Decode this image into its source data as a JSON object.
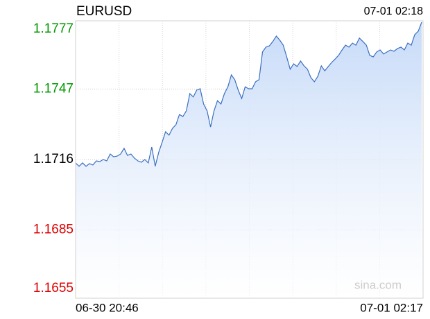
{
  "chart_data": {
    "type": "line",
    "title": "EURUSD",
    "time": "07-01 02:18",
    "x_labels": [
      "06-30 20:46",
      "07-01 02:17"
    ],
    "watermark": "sina.com",
    "ylim": [
      1.1655,
      1.1777
    ],
    "yticks": [
      1.1655,
      1.1685,
      1.1716,
      1.1747,
      1.1777
    ],
    "tick_colors": [
      "#dd0000",
      "#dd0000",
      "#000000",
      "#009900",
      "#009900"
    ],
    "grid": true,
    "series": [
      {
        "name": "EURUSD",
        "color": "#3a6fc0",
        "values": [
          1.17145,
          1.1713,
          1.17145,
          1.1713,
          1.17142,
          1.17136,
          1.17154,
          1.17151,
          1.1716,
          1.17154,
          1.17184,
          1.17172,
          1.17175,
          1.17184,
          1.17209,
          1.17178,
          1.17184,
          1.17166,
          1.17154,
          1.17148,
          1.1716,
          1.17145,
          1.17215,
          1.1713,
          1.17191,
          1.17236,
          1.17282,
          1.17267,
          1.17297,
          1.17313,
          1.17358,
          1.17349,
          1.17374,
          1.1745,
          1.17435,
          1.17465,
          1.17471,
          1.17404,
          1.17374,
          1.17303,
          1.17374,
          1.17419,
          1.17404,
          1.1745,
          1.1748,
          1.17532,
          1.17511,
          1.17465,
          1.17428,
          1.1748,
          1.17471,
          1.17471,
          1.17502,
          1.17511,
          1.17633,
          1.17654,
          1.1766,
          1.17679,
          1.17703,
          1.17685,
          1.17663,
          1.17611,
          1.17557,
          1.17581,
          1.17569,
          1.17593,
          1.17572,
          1.17557,
          1.1752,
          1.17502,
          1.17526,
          1.17572,
          1.1755,
          1.17569,
          1.17587,
          1.17602,
          1.17618,
          1.17642,
          1.17663,
          1.17654,
          1.17672,
          1.17663,
          1.17694,
          1.17679,
          1.17663,
          1.17618,
          1.17611,
          1.17633,
          1.17642,
          1.17624,
          1.17633,
          1.17642,
          1.17636,
          1.17648,
          1.17654,
          1.17642,
          1.17672,
          1.17663,
          1.17709,
          1.17724,
          1.17764
        ]
      }
    ]
  }
}
